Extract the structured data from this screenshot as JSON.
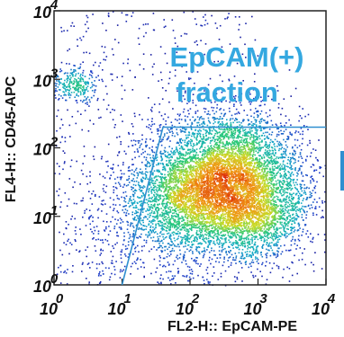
{
  "chart_data": {
    "type": "scatter",
    "subtype": "flow-cytometry density dot plot",
    "title": "",
    "xlabel": "FL2-H:: EpCAM-PE",
    "ylabel": "FL4-H:: CD45-APC",
    "x_scale": "log",
    "y_scale": "log",
    "xlim": [
      1,
      10000
    ],
    "ylim": [
      1,
      10000
    ],
    "x_ticks": [
      {
        "value": 1,
        "base": "10",
        "exp": "0"
      },
      {
        "value": 10,
        "base": "10",
        "exp": "1"
      },
      {
        "value": 100,
        "base": "10",
        "exp": "2"
      },
      {
        "value": 1000,
        "base": "10",
        "exp": "3"
      },
      {
        "value": 10000,
        "base": "10",
        "exp": "4"
      }
    ],
    "y_ticks": [
      {
        "value": 1,
        "base": "10",
        "exp": "0"
      },
      {
        "value": 10,
        "base": "10",
        "exp": "1"
      },
      {
        "value": 100,
        "base": "10",
        "exp": "2"
      },
      {
        "value": 1000,
        "base": "10",
        "exp": "3"
      },
      {
        "value": 10000,
        "base": "10",
        "exp": "4"
      }
    ],
    "populations": [
      {
        "center_x": 350,
        "center_y": 40,
        "spread_x_decades": 0.55,
        "spread_y_decades": 0.45,
        "weight": 0.55
      },
      {
        "center_x": 120,
        "center_y": 15,
        "spread_x_decades": 0.55,
        "spread_y_decades": 0.35,
        "weight": 0.25
      },
      {
        "center_x": 1200,
        "center_y": 10,
        "spread_x_decades": 0.35,
        "spread_y_decades": 0.3,
        "weight": 0.12
      },
      {
        "center_x": 2,
        "center_y": 800,
        "spread_x_decades": 0.2,
        "spread_y_decades": 0.12,
        "weight": 0.03
      },
      {
        "center_x": 30,
        "center_y": 3,
        "spread_x_decades": 0.9,
        "spread_y_decades": 0.6,
        "weight": 0.05
      }
    ],
    "gate": {
      "label_line1": "EpCAM(+)",
      "label_line2": "fraction",
      "vertices": [
        [
          10,
          1
        ],
        [
          40,
          200
        ],
        [
          10000,
          200
        ]
      ],
      "color": "#2f8fd0"
    },
    "colors": {
      "low": "#1a1aa6",
      "mid": "#16b0c8",
      "high": "#e8e020",
      "peak": "#e03a10",
      "gate_text": "#34a8e0",
      "side_marker": "#2f8fd0"
    },
    "grid": false,
    "legend": "none"
  }
}
